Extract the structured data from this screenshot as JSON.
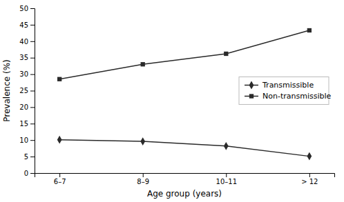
{
  "chart_data": {
    "type": "line",
    "categories": [
      "6–7",
      "8–9",
      "10–11",
      "> 12"
    ],
    "series": [
      {
        "name": "Transmissible",
        "color": "#2a2a2a",
        "marker": "diamond",
        "values": [
          10.1,
          9.6,
          8.2,
          5.1
        ]
      },
      {
        "name": "Non-transmissible",
        "color": "#2a2a2a",
        "marker": "square",
        "values": [
          28.5,
          33.0,
          36.2,
          43.3
        ]
      }
    ],
    "xlabel": "Age group (years)",
    "ylabel": "Prevalence (%)",
    "ylim": [
      0,
      50
    ],
    "yticks": [
      0,
      5,
      10,
      15,
      20,
      25,
      30,
      35,
      40,
      45,
      50
    ],
    "grid": false,
    "legend": "right"
  }
}
